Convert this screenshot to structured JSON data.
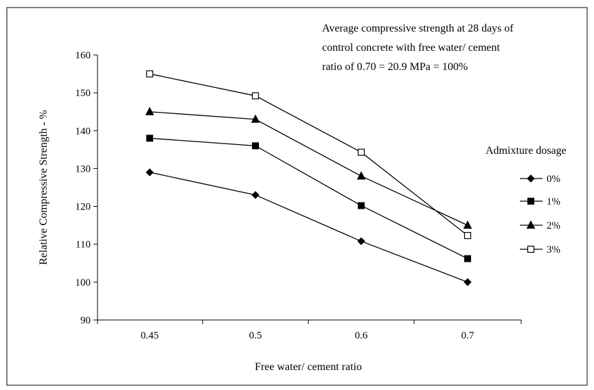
{
  "chart_data": {
    "type": "line",
    "title": "",
    "annotation": [
      "Average compressive strength at 28 days of",
      "control concrete with free water/ cement",
      "ratio of 0.70 = 20.9 MPa = 100%"
    ],
    "xlabel": "Free water/ cement ratio",
    "ylabel": "Relative Compressive Strength - %",
    "categories": [
      "0.45",
      "0.5",
      "0.6",
      "0.7"
    ],
    "ylim": [
      90,
      160
    ],
    "yticks": [
      "90",
      "100",
      "110",
      "120",
      "130",
      "140",
      "150",
      "160"
    ],
    "grid": false,
    "legend": {
      "title": "Admixture dosage",
      "placement": "right"
    },
    "series": [
      {
        "name": "0%",
        "marker": "diamond",
        "values": [
          129,
          123,
          110.8,
          100
        ]
      },
      {
        "name": "1%",
        "marker": "square",
        "values": [
          138,
          136,
          120.2,
          106.2
        ]
      },
      {
        "name": "2%",
        "marker": "triangle",
        "values": [
          145,
          143,
          128,
          115
        ]
      },
      {
        "name": "3%",
        "marker": "open-square",
        "values": [
          155,
          149.2,
          134.3,
          112.3
        ]
      }
    ]
  }
}
